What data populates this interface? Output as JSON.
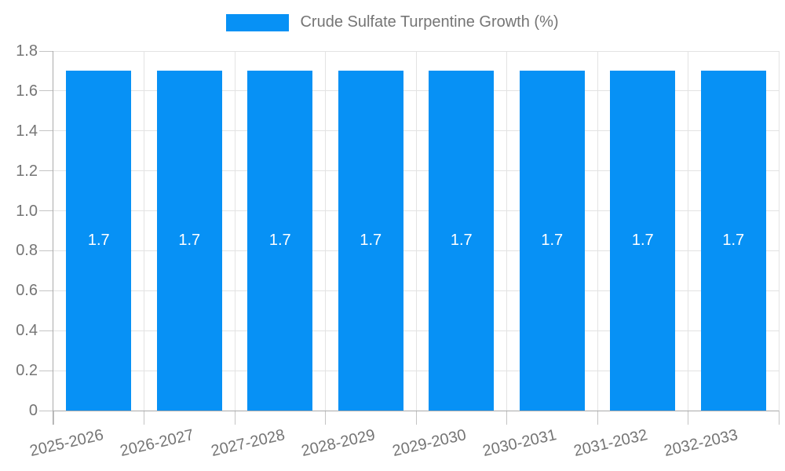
{
  "chart_data": {
    "type": "bar",
    "title": "",
    "legend": [
      "Crude Sulfate Turpentine Growth (%)"
    ],
    "legend_position": "top-center",
    "categories": [
      "2025-2026",
      "2026-2027",
      "2027-2028",
      "2028-2029",
      "2029-2030",
      "2030-2031",
      "2031-2032",
      "2032-2033"
    ],
    "values": [
      1.7,
      1.7,
      1.7,
      1.7,
      1.7,
      1.7,
      1.7,
      1.7
    ],
    "bar_labels": [
      "1.7",
      "1.7",
      "1.7",
      "1.7",
      "1.7",
      "1.7",
      "1.7",
      "1.7"
    ],
    "xlabel": "",
    "ylabel": "",
    "ylim": [
      0,
      1.8
    ],
    "y_tick_labels": [
      "0",
      "0.2",
      "0.4",
      "0.6",
      "0.8",
      "1.0",
      "1.2",
      "1.4",
      "1.6",
      "1.8"
    ],
    "grid": true,
    "colors": {
      "bar": "#0791f5",
      "text": "#757575",
      "bar_label": "#ffffff",
      "gridline": "#e3e3e3",
      "axis": "#aaaaaa",
      "tick": "#c4c4c4",
      "background": "#ffffff"
    }
  }
}
